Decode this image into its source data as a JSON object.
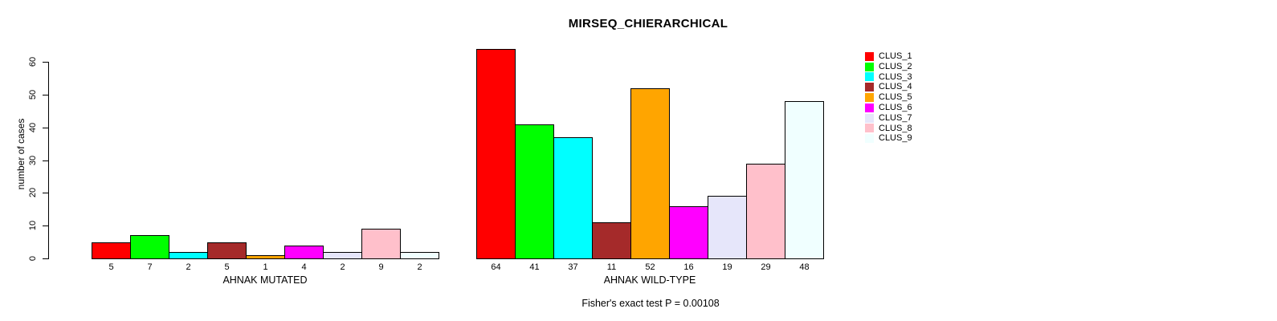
{
  "chart_data": {
    "type": "bar",
    "title": "MIRSEQ_CHIERARCHICAL",
    "ylabel": "number of cases",
    "ylim": [
      0,
      60
    ],
    "yticks": [
      0,
      10,
      20,
      30,
      40,
      50,
      60
    ],
    "grid": false,
    "legend_position": "right",
    "categories": [
      "CLUS_1",
      "CLUS_2",
      "CLUS_3",
      "CLUS_4",
      "CLUS_5",
      "CLUS_6",
      "CLUS_7",
      "CLUS_8",
      "CLUS_9"
    ],
    "colors": [
      "#FF0000",
      "#00FF00",
      "#00FFFF",
      "#A52A2A",
      "#FFA500",
      "#FF00FF",
      "#E6E6FA",
      "#FFC0CB",
      "#F0FFFF"
    ],
    "groups": [
      {
        "xlabel": "AHNAK MUTATED",
        "values": [
          5,
          7,
          2,
          5,
          1,
          4,
          2,
          9,
          2
        ]
      },
      {
        "xlabel": "AHNAK WILD-TYPE",
        "values": [
          64,
          41,
          37,
          11,
          52,
          16,
          19,
          29,
          48
        ]
      }
    ],
    "annotation": "Fisher's exact test P = 0.00108"
  }
}
